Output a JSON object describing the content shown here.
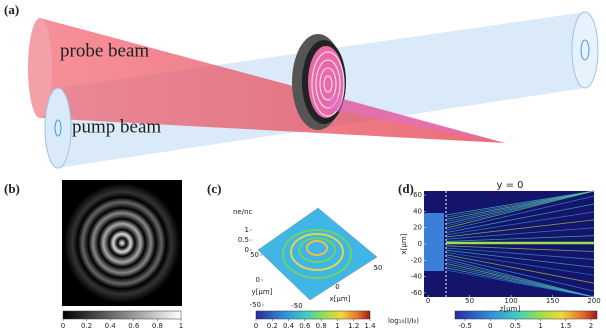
{
  "panel_a": {
    "label": "(a)",
    "probe_label": "probe beam",
    "pump_label": "pump beam"
  },
  "panel_b": {
    "label": "(b)",
    "colorbar": {
      "lim": [
        0,
        1
      ],
      "ticks": [
        0,
        0.2,
        0.4,
        0.6,
        0.8,
        1
      ]
    }
  },
  "panel_c": {
    "label": "(c)",
    "z_label": "ne/nc",
    "zlim": [
      0,
      1
    ],
    "zticks": [
      0,
      0.5,
      1
    ],
    "y_label": "y[μm]",
    "ylim": [
      -50,
      50
    ],
    "yticks": [
      -50,
      0,
      50
    ],
    "x_label": "x[μm]",
    "xlim": [
      -50,
      50
    ],
    "xticks": [
      -50,
      0,
      50
    ],
    "colorbar": {
      "lim": [
        0,
        1.4
      ],
      "ticks": [
        0,
        0.2,
        0.4,
        0.6,
        0.8,
        1,
        1.2,
        1.4
      ]
    }
  },
  "panel_d": {
    "label": "(d)",
    "title": "y = 0",
    "x_label": "z[μm]",
    "xlim": [
      -5,
      200
    ],
    "xticks": [
      0,
      50,
      100,
      150,
      200
    ],
    "y_label": "x[μm]",
    "ylim": [
      -65,
      65
    ],
    "yticks": [
      -60,
      -40,
      -20,
      0,
      20,
      40,
      60
    ],
    "colorbar": {
      "label": "log₁₀(I/I₀)",
      "lim": [
        -0.6,
        2.1
      ],
      "ticks": [
        -0.5,
        0,
        0.5,
        1,
        1.5,
        2
      ]
    }
  }
}
